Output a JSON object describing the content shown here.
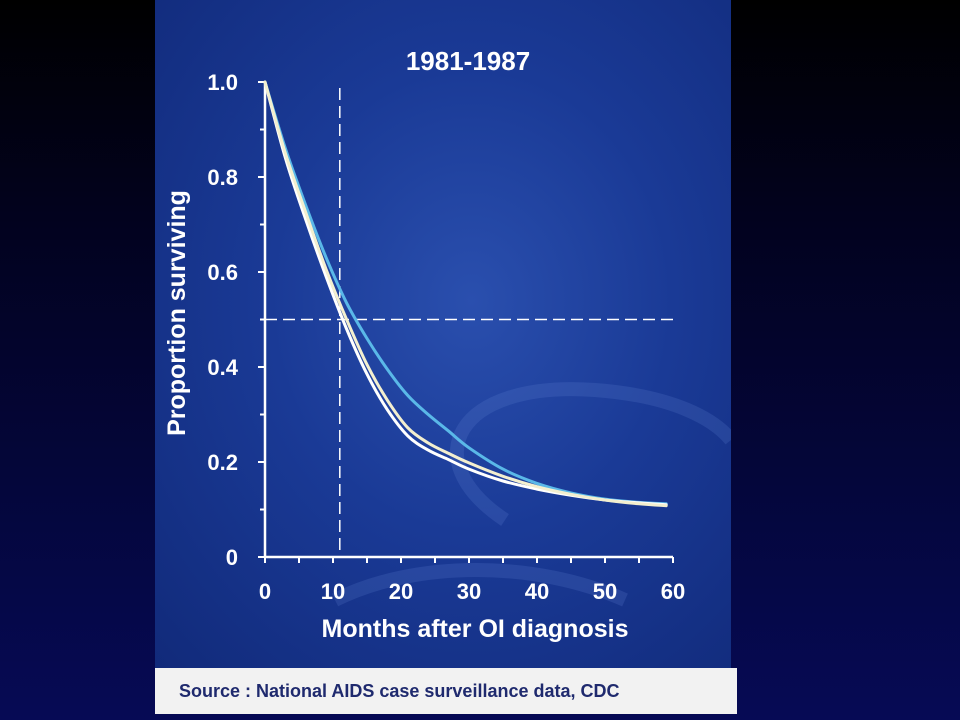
{
  "chart_data": {
    "type": "line",
    "title": "1981-1987",
    "xlabel": "Months after OI diagnosis",
    "ylabel": "Proportion surviving",
    "xlim": [
      0,
      60
    ],
    "ylim": [
      0,
      1.0
    ],
    "x_ticks": [
      0,
      10,
      20,
      30,
      40,
      50,
      60
    ],
    "x_tick_labels": [
      "0",
      "10",
      "20",
      "30",
      "40",
      "50",
      "60"
    ],
    "y_ticks": [
      0,
      0.2,
      0.4,
      0.6,
      0.8,
      1.0
    ],
    "y_tick_labels": [
      "0",
      "0.2",
      "0.4",
      "0.6",
      "0.8",
      "1.0"
    ],
    "reference_lines": [
      {
        "orientation": "vertical",
        "x": 11
      },
      {
        "orientation": "horizontal",
        "y": 0.5
      }
    ],
    "series": [
      {
        "color": "#5ab8e8",
        "x": [
          0,
          3,
          6,
          9,
          12,
          15,
          18,
          21,
          24,
          27,
          30,
          35,
          40,
          45,
          50,
          55,
          59
        ],
        "y": [
          1.0,
          0.86,
          0.74,
          0.63,
          0.535,
          0.46,
          0.395,
          0.34,
          0.3,
          0.265,
          0.23,
          0.185,
          0.155,
          0.135,
          0.122,
          0.115,
          0.112
        ]
      },
      {
        "color": "#ffffff",
        "x": [
          0,
          3,
          6,
          9,
          12,
          15,
          18,
          21,
          24,
          27,
          30,
          35,
          40,
          45,
          50,
          55,
          59
        ],
        "y": [
          1.0,
          0.84,
          0.71,
          0.59,
          0.48,
          0.385,
          0.31,
          0.255,
          0.225,
          0.205,
          0.185,
          0.16,
          0.143,
          0.13,
          0.12,
          0.114,
          0.11
        ]
      },
      {
        "color": "#f3efcf",
        "x": [
          0,
          3,
          6,
          9,
          12,
          15,
          18,
          21,
          24,
          27,
          30,
          35,
          40,
          45,
          50,
          55,
          59
        ],
        "y": [
          1.0,
          0.85,
          0.725,
          0.605,
          0.5,
          0.405,
          0.33,
          0.272,
          0.24,
          0.218,
          0.198,
          0.17,
          0.148,
          0.132,
          0.12,
          0.112,
          0.108
        ]
      }
    ]
  },
  "source": "Source : National AIDS case surveillance data, CDC"
}
